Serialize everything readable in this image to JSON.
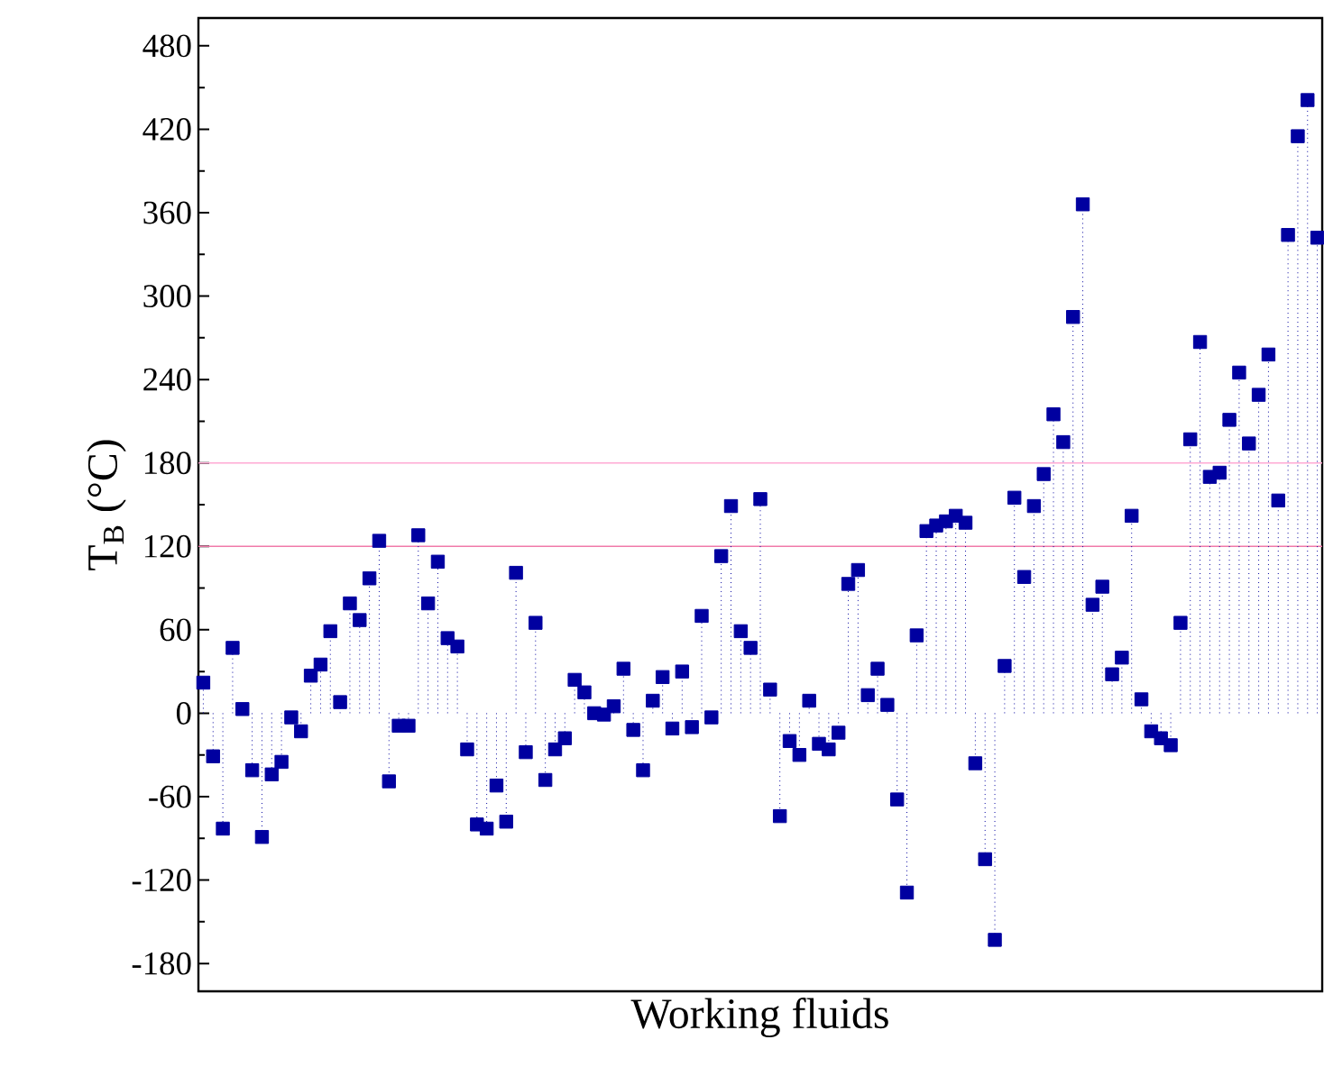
{
  "chart_data": {
    "type": "lollipop",
    "xlabel": "Working fluids",
    "ylabel": "T$_{B}$ (°C)",
    "categories": [
      null,
      null,
      null,
      null,
      null,
      null,
      null,
      null,
      null,
      null,
      null,
      null,
      null,
      null,
      null,
      null,
      null,
      null,
      null,
      null,
      null,
      null,
      null,
      null,
      null,
      null,
      null,
      null,
      null,
      null,
      null,
      null,
      null,
      null,
      null,
      null,
      null,
      null,
      null,
      null,
      null,
      null,
      null,
      null,
      null,
      null,
      null,
      null,
      null,
      null,
      null,
      null,
      null,
      null,
      null,
      null,
      null,
      null,
      null,
      null,
      null,
      null,
      null,
      null,
      null,
      null,
      null,
      null,
      null,
      null,
      null,
      null,
      null,
      null,
      null,
      null,
      null,
      null,
      null,
      null,
      null,
      null,
      null,
      null,
      null,
      null,
      null,
      null,
      null,
      null,
      null,
      null,
      null,
      null,
      null,
      null,
      null,
      null,
      null,
      null,
      null,
      null,
      null,
      null,
      null,
      null,
      null,
      null,
      null,
      null,
      null,
      null,
      null,
      null,
      null
    ],
    "series": [
      {
        "color": "#0000a0",
        "values": [
          22,
          -31,
          -83,
          47,
          3,
          -41,
          -89,
          -44,
          -35,
          -3,
          -13,
          27,
          35,
          59,
          8,
          79,
          67,
          97,
          124,
          -49,
          -9,
          -9,
          128,
          79,
          109,
          54,
          48,
          -26,
          -80,
          -83,
          -52,
          -78,
          101,
          -28,
          65,
          -48,
          -26,
          -18,
          24,
          15,
          0,
          -1,
          5,
          32,
          -12,
          -41,
          9,
          26,
          -11,
          30,
          -10,
          70,
          -3,
          113,
          149,
          59,
          47,
          154,
          17,
          -74,
          -20,
          -30,
          9,
          -22,
          -26,
          -14,
          93,
          103,
          13,
          32,
          6,
          -62,
          -129,
          56,
          131,
          135,
          138,
          142,
          137,
          -36,
          -105,
          -163,
          34,
          155,
          98,
          149,
          172,
          215,
          195,
          285,
          366,
          78,
          91,
          28,
          40,
          142,
          10,
          -13,
          -18,
          -23,
          65,
          197,
          267,
          170,
          173,
          211,
          245,
          194,
          229,
          258,
          153,
          344,
          415,
          441,
          342
        ]
      }
    ],
    "marker": "square",
    "line_style": "dotted",
    "ylim": [
      -200,
      500
    ],
    "yticks": [
      -180,
      -120,
      -60,
      0,
      60,
      120,
      180,
      240,
      300,
      360,
      420,
      480
    ],
    "ref_lines": [
      {
        "axis": "y",
        "value": 180,
        "color": "#ffaad4"
      },
      {
        "axis": "y",
        "value": 120,
        "color": "#f07aaa"
      }
    ],
    "tick_labels": "y"
  }
}
